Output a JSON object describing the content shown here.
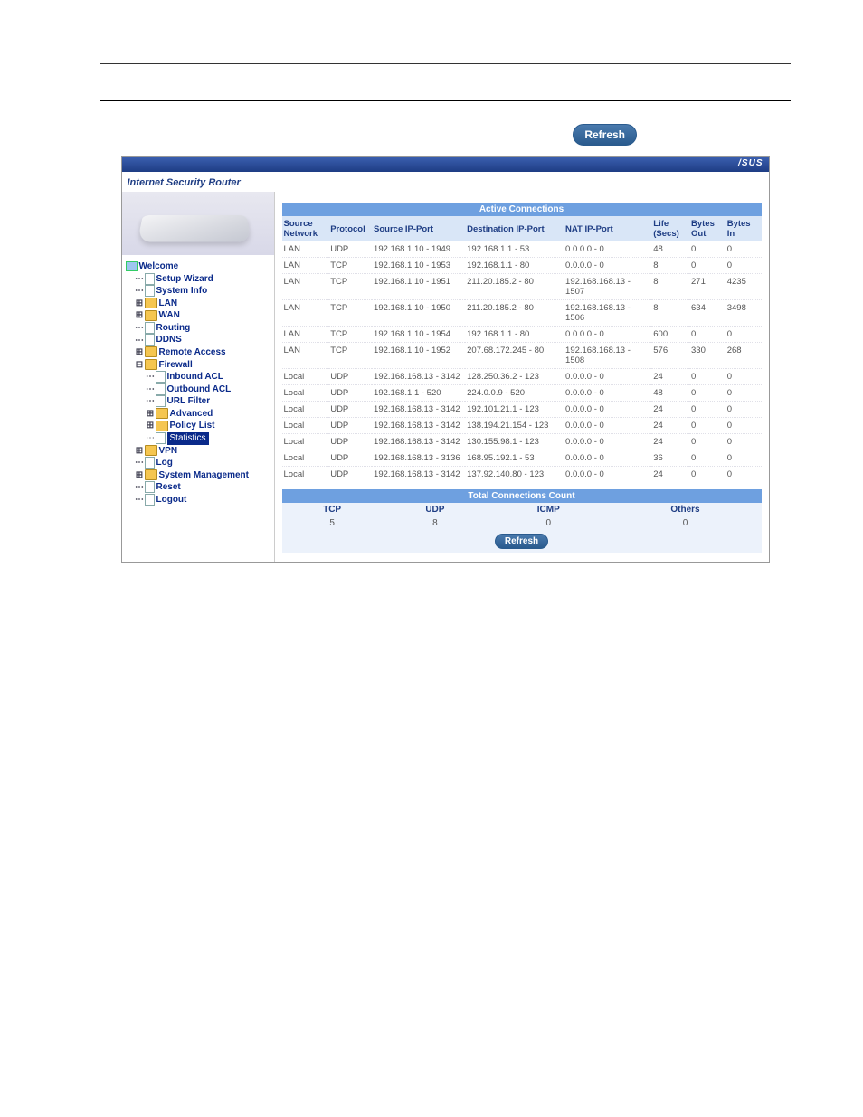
{
  "refresh_button": "Refresh",
  "header": {
    "title": "Internet Security Router",
    "logo": "/SUS"
  },
  "nav": {
    "welcome": "Welcome",
    "setup_wizard": "Setup Wizard",
    "system_info": "System Info",
    "lan": "LAN",
    "wan": "WAN",
    "routing": "Routing",
    "ddns": "DDNS",
    "remote_access": "Remote Access",
    "firewall": "Firewall",
    "inbound_acl": "Inbound ACL",
    "outbound_acl": "Outbound ACL",
    "url_filter": "URL Filter",
    "advanced": "Advanced",
    "policy_list": "Policy List",
    "statistics": "Statistics",
    "vpn": "VPN",
    "log": "Log",
    "system_management": "System Management",
    "reset": "Reset",
    "logout": "Logout"
  },
  "active": {
    "title": "Active Connections",
    "cols": {
      "src_net": "Source Network",
      "proto": "Protocol",
      "src_ip": "Source IP-Port",
      "dst_ip": "Destination IP-Port",
      "nat_ip": "NAT IP-Port",
      "life": "Life (Secs)",
      "bout": "Bytes Out",
      "bin": "Bytes In"
    },
    "rows": [
      {
        "net": "LAN",
        "proto": "UDP",
        "src": "192.168.1.10 - 1949",
        "dst": "192.168.1.1 - 53",
        "nat": "0.0.0.0 - 0",
        "life": "48",
        "bout": "0",
        "bin": "0"
      },
      {
        "net": "LAN",
        "proto": "TCP",
        "src": "192.168.1.10 - 1953",
        "dst": "192.168.1.1 - 80",
        "nat": "0.0.0.0 - 0",
        "life": "8",
        "bout": "0",
        "bin": "0"
      },
      {
        "net": "LAN",
        "proto": "TCP",
        "src": "192.168.1.10 - 1951",
        "dst": "211.20.185.2 - 80",
        "nat": "192.168.168.13 - 1507",
        "life": "8",
        "bout": "271",
        "bin": "4235"
      },
      {
        "net": "LAN",
        "proto": "TCP",
        "src": "192.168.1.10 - 1950",
        "dst": "211.20.185.2 - 80",
        "nat": "192.168.168.13 - 1506",
        "life": "8",
        "bout": "634",
        "bin": "3498"
      },
      {
        "net": "LAN",
        "proto": "TCP",
        "src": "192.168.1.10 - 1954",
        "dst": "192.168.1.1 - 80",
        "nat": "0.0.0.0 - 0",
        "life": "600",
        "bout": "0",
        "bin": "0"
      },
      {
        "net": "LAN",
        "proto": "TCP",
        "src": "192.168.1.10 - 1952",
        "dst": "207.68.172.245 - 80",
        "nat": "192.168.168.13 - 1508",
        "life": "576",
        "bout": "330",
        "bin": "268"
      },
      {
        "net": "Local",
        "proto": "UDP",
        "src": "192.168.168.13 - 3142",
        "dst": "128.250.36.2 - 123",
        "nat": "0.0.0.0 - 0",
        "life": "24",
        "bout": "0",
        "bin": "0"
      },
      {
        "net": "Local",
        "proto": "UDP",
        "src": "192.168.1.1 - 520",
        "dst": "224.0.0.9 - 520",
        "nat": "0.0.0.0 - 0",
        "life": "48",
        "bout": "0",
        "bin": "0"
      },
      {
        "net": "Local",
        "proto": "UDP",
        "src": "192.168.168.13 - 3142",
        "dst": "192.101.21.1 - 123",
        "nat": "0.0.0.0 - 0",
        "life": "24",
        "bout": "0",
        "bin": "0"
      },
      {
        "net": "Local",
        "proto": "UDP",
        "src": "192.168.168.13 - 3142",
        "dst": "138.194.21.154 - 123",
        "nat": "0.0.0.0 - 0",
        "life": "24",
        "bout": "0",
        "bin": "0"
      },
      {
        "net": "Local",
        "proto": "UDP",
        "src": "192.168.168.13 - 3142",
        "dst": "130.155.98.1 - 123",
        "nat": "0.0.0.0 - 0",
        "life": "24",
        "bout": "0",
        "bin": "0"
      },
      {
        "net": "Local",
        "proto": "UDP",
        "src": "192.168.168.13 - 3136",
        "dst": "168.95.192.1 - 53",
        "nat": "0.0.0.0 - 0",
        "life": "36",
        "bout": "0",
        "bin": "0"
      },
      {
        "net": "Local",
        "proto": "UDP",
        "src": "192.168.168.13 - 3142",
        "dst": "137.92.140.80 - 123",
        "nat": "0.0.0.0 - 0",
        "life": "24",
        "bout": "0",
        "bin": "0"
      }
    ]
  },
  "totals": {
    "title": "Total Connections Count",
    "tcp_label": "TCP",
    "tcp": "5",
    "udp_label": "UDP",
    "udp": "8",
    "icmp_label": "ICMP",
    "icmp": "0",
    "others_label": "Others",
    "others": "0",
    "refresh": "Refresh"
  }
}
